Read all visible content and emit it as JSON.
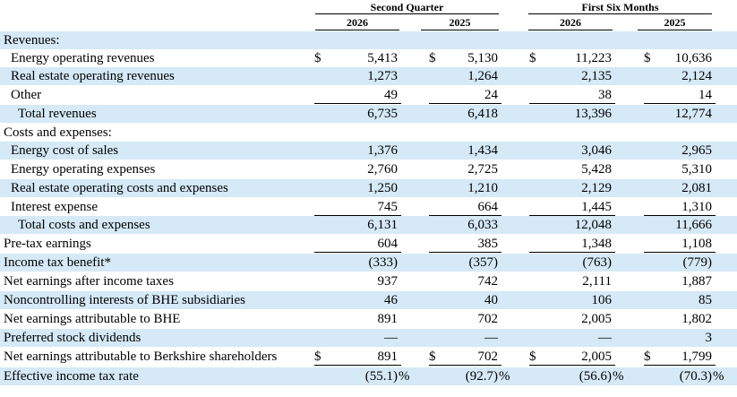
{
  "header": {
    "group1": "Second Quarter",
    "group2": "First Six Months",
    "years": [
      "2026",
      "2025",
      "2026",
      "2025"
    ]
  },
  "rows": [
    {
      "label": "Revenues:",
      "indent": 0,
      "band": true,
      "values": [
        "",
        "",
        "",
        ""
      ],
      "currency": [
        "",
        "",
        "",
        ""
      ],
      "pct": [
        "",
        "",
        "",
        ""
      ]
    },
    {
      "label": "Energy operating revenues",
      "indent": 1,
      "band": false,
      "values": [
        "5,413",
        "5,130",
        "11,223",
        "10,636"
      ],
      "currency": [
        "$",
        "$",
        "$",
        "$"
      ],
      "pct": [
        "",
        "",
        "",
        ""
      ]
    },
    {
      "label": "Real estate operating revenues",
      "indent": 1,
      "band": true,
      "values": [
        "1,273",
        "1,264",
        "2,135",
        "2,124"
      ],
      "currency": [
        "",
        "",
        "",
        ""
      ],
      "pct": [
        "",
        "",
        "",
        ""
      ]
    },
    {
      "label": "Other",
      "indent": 1,
      "band": false,
      "values": [
        "49",
        "24",
        "38",
        "14"
      ],
      "currency": [
        "",
        "",
        "",
        ""
      ],
      "pct": [
        "",
        "",
        "",
        ""
      ]
    },
    {
      "label": "Total revenues",
      "indent": 2,
      "band": true,
      "values": [
        "6,735",
        "6,418",
        "13,396",
        "12,774"
      ],
      "currency": [
        "",
        "",
        "",
        ""
      ],
      "pct": [
        "",
        "",
        "",
        ""
      ]
    },
    {
      "label": "Costs and expenses:",
      "indent": 0,
      "band": false,
      "values": [
        "",
        "",
        "",
        ""
      ],
      "currency": [
        "",
        "",
        "",
        ""
      ],
      "pct": [
        "",
        "",
        "",
        ""
      ]
    },
    {
      "label": "Energy cost of sales",
      "indent": 1,
      "band": true,
      "values": [
        "1,376",
        "1,434",
        "3,046",
        "2,965"
      ],
      "currency": [
        "",
        "",
        "",
        ""
      ],
      "pct": [
        "",
        "",
        "",
        ""
      ]
    },
    {
      "label": "Energy operating expenses",
      "indent": 1,
      "band": false,
      "values": [
        "2,760",
        "2,725",
        "5,428",
        "5,310"
      ],
      "currency": [
        "",
        "",
        "",
        ""
      ],
      "pct": [
        "",
        "",
        "",
        ""
      ]
    },
    {
      "label": "Real estate operating costs and expenses",
      "indent": 1,
      "band": true,
      "values": [
        "1,250",
        "1,210",
        "2,129",
        "2,081"
      ],
      "currency": [
        "",
        "",
        "",
        ""
      ],
      "pct": [
        "",
        "",
        "",
        ""
      ]
    },
    {
      "label": "Interest expense",
      "indent": 1,
      "band": false,
      "values": [
        "745",
        "664",
        "1,445",
        "1,310"
      ],
      "currency": [
        "",
        "",
        "",
        ""
      ],
      "pct": [
        "",
        "",
        "",
        ""
      ]
    },
    {
      "label": "Total costs and expenses",
      "indent": 2,
      "band": true,
      "values": [
        "6,131",
        "6,033",
        "12,048",
        "11,666"
      ],
      "currency": [
        "",
        "",
        "",
        ""
      ],
      "pct": [
        "",
        "",
        "",
        ""
      ]
    },
    {
      "label": "Pre-tax earnings",
      "indent": 0,
      "band": false,
      "values": [
        "604",
        "385",
        "1,348",
        "1,108"
      ],
      "currency": [
        "",
        "",
        "",
        ""
      ],
      "pct": [
        "",
        "",
        "",
        ""
      ]
    },
    {
      "label": "Income tax benefit*",
      "indent": 0,
      "band": true,
      "values": [
        "(333)",
        "(357)",
        "(763)",
        "(779)"
      ],
      "currency": [
        "",
        "",
        "",
        ""
      ],
      "pct": [
        "",
        "",
        "",
        ""
      ]
    },
    {
      "label": "Net earnings after income taxes",
      "indent": 0,
      "band": false,
      "values": [
        "937",
        "742",
        "2,111",
        "1,887"
      ],
      "currency": [
        "",
        "",
        "",
        ""
      ],
      "pct": [
        "",
        "",
        "",
        ""
      ]
    },
    {
      "label": "Noncontrolling interests of BHE subsidiaries",
      "indent": 0,
      "band": true,
      "values": [
        "46",
        "40",
        "106",
        "85"
      ],
      "currency": [
        "",
        "",
        "",
        ""
      ],
      "pct": [
        "",
        "",
        "",
        ""
      ]
    },
    {
      "label": "Net earnings attributable to BHE",
      "indent": 0,
      "band": false,
      "values": [
        "891",
        "702",
        "2,005",
        "1,802"
      ],
      "currency": [
        "",
        "",
        "",
        ""
      ],
      "pct": [
        "",
        "",
        "",
        ""
      ]
    },
    {
      "label": "Preferred stock dividends",
      "indent": 0,
      "band": true,
      "values": [
        "—",
        "—",
        "—",
        "3"
      ],
      "currency": [
        "",
        "",
        "",
        ""
      ],
      "pct": [
        "",
        "",
        "",
        ""
      ]
    },
    {
      "label": "Net earnings attributable to Berkshire shareholders",
      "indent": 0,
      "band": false,
      "values": [
        "891",
        "702",
        "2,005",
        "1,799"
      ],
      "currency": [
        "$",
        "$",
        "$",
        "$"
      ],
      "pct": [
        "",
        "",
        "",
        ""
      ]
    },
    {
      "label": "Effective income tax rate",
      "indent": 0,
      "band": true,
      "values": [
        "(55.1)",
        "(92.7)",
        "(56.6)",
        "(70.3)"
      ],
      "currency": [
        "",
        "",
        "",
        ""
      ],
      "pct": [
        "%",
        "%",
        "%",
        "%"
      ]
    }
  ]
}
